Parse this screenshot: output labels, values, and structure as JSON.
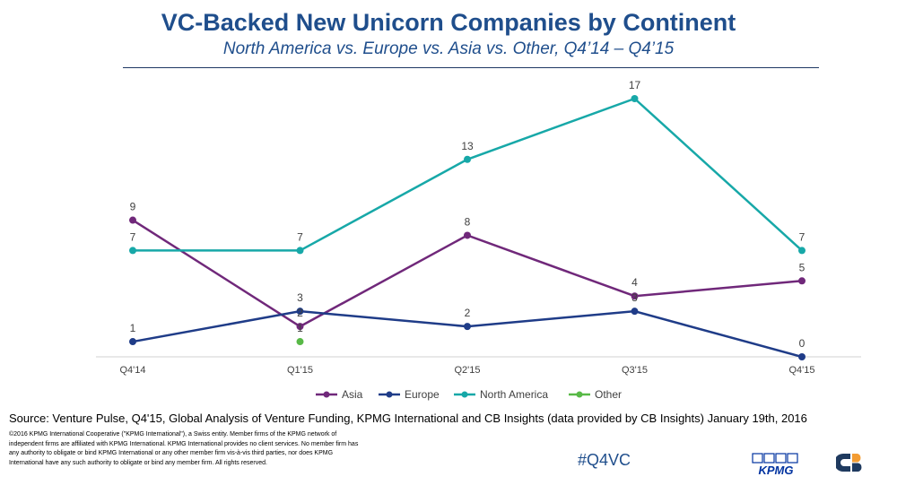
{
  "chart_data": {
    "type": "line",
    "title": "VC-Backed New Unicorn Companies by Continent",
    "subtitle": "North America vs. Europe vs. Asia vs. Other, Q4’14 – Q4’15",
    "categories": [
      "Q4'14",
      "Q1'15",
      "Q2'15",
      "Q3'15",
      "Q4'15"
    ],
    "ylim": [
      0,
      17
    ],
    "grid": false,
    "legend": "bottom",
    "series": [
      {
        "name": "Asia",
        "color": "#70287a",
        "values": [
          9,
          2,
          8,
          4,
          5
        ]
      },
      {
        "name": "Europe",
        "color": "#1f3c88",
        "values": [
          1,
          3,
          2,
          3,
          0
        ]
      },
      {
        "name": "North America",
        "color": "#17a8a8",
        "values": [
          7,
          7,
          13,
          17,
          7
        ]
      },
      {
        "name": "Other",
        "color": "#58b947",
        "values": [
          null,
          1,
          null,
          null,
          null
        ]
      }
    ]
  },
  "footer": {
    "source": "Source: Venture Pulse, Q4'15, Global Analysis of Venture Funding, KPMG International and CB Insights (data provided by CB Insights) January 19th, 2016",
    "disclaimer": "©2016 KPMG International Cooperative (\"KPMG International\"), a Swiss entity. Member firms of the KPMG network of independent firms are affiliated with KPMG International. KPMG International provides no client services. No member firm has any authority to obligate or bind KPMG International or any other member firm vis-à-vis third parties, nor does KPMG International have any such authority to obligate or bind any member firm. All rights reserved.",
    "hashtag": "#Q4VC",
    "kpmg_logo_text": "KPMG"
  },
  "colors": {
    "title": "#1f4e8c",
    "kpmg_blue": "#0033a0",
    "cb_dark": "#1f3a5f",
    "cb_orange": "#f39c33"
  }
}
